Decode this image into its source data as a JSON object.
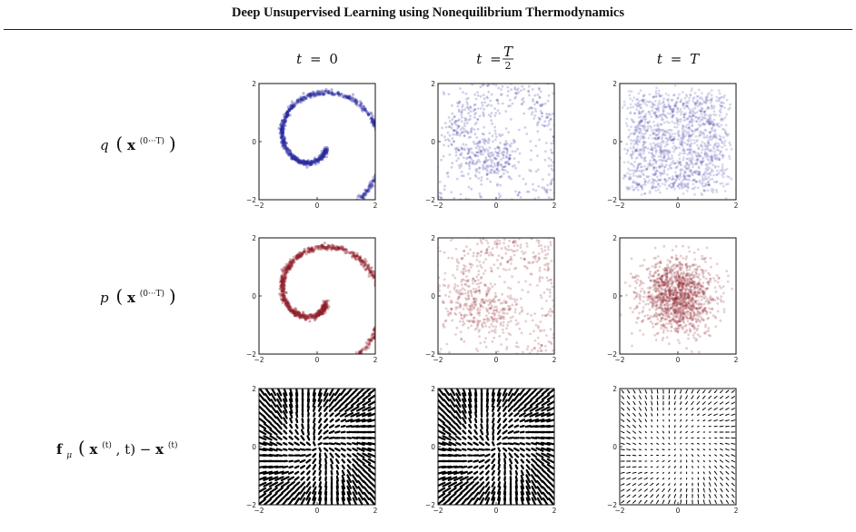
{
  "header": {
    "title": "Deep Unsupervised Learning using Nonequilibrium Thermodynamics"
  },
  "columns": [
    {
      "var": "t",
      "eq": "=",
      "value": "0"
    },
    {
      "var": "t",
      "eq": "=",
      "frac_num": "T",
      "frac_den": "2"
    },
    {
      "var": "t",
      "eq": "=",
      "value": "T"
    }
  ],
  "rows": [
    {
      "func": "q",
      "sup": "(0···T)"
    },
    {
      "func": "p",
      "sup": "(0···T)"
    },
    {
      "func": "f",
      "sub": "μ",
      "sup": "(t)",
      "arg2": ", t) − ",
      "sup2": "(t)"
    }
  ],
  "axes": {
    "x_ticks": [
      "−2",
      "0",
      "2"
    ],
    "y_ticks": [
      "2",
      "0",
      "−2"
    ],
    "lim": [
      -2,
      2
    ]
  },
  "colors": {
    "q": "#2a2aa0",
    "p": "#8e1e28",
    "arrows": "#000000"
  },
  "panels": [
    {
      "row": "q",
      "col": "t=0",
      "kind": "spiral",
      "noise": 0.04
    },
    {
      "row": "q",
      "col": "t=T/2",
      "kind": "spiral",
      "noise": 0.42
    },
    {
      "row": "q",
      "col": "t=T",
      "kind": "gaussian"
    },
    {
      "row": "p",
      "col": "t=0",
      "kind": "spiral",
      "noise": 0.05
    },
    {
      "row": "p",
      "col": "t=T/2",
      "kind": "spiral",
      "noise": 0.45
    },
    {
      "row": "p",
      "col": "t=T",
      "kind": "gaussian"
    },
    {
      "row": "f",
      "col": "t=0",
      "kind": "drift",
      "strength": 1.0
    },
    {
      "row": "f",
      "col": "t=T/2",
      "kind": "drift",
      "strength": 1.0
    },
    {
      "row": "f",
      "col": "t=T",
      "kind": "drift",
      "strength": 0.25
    }
  ]
}
